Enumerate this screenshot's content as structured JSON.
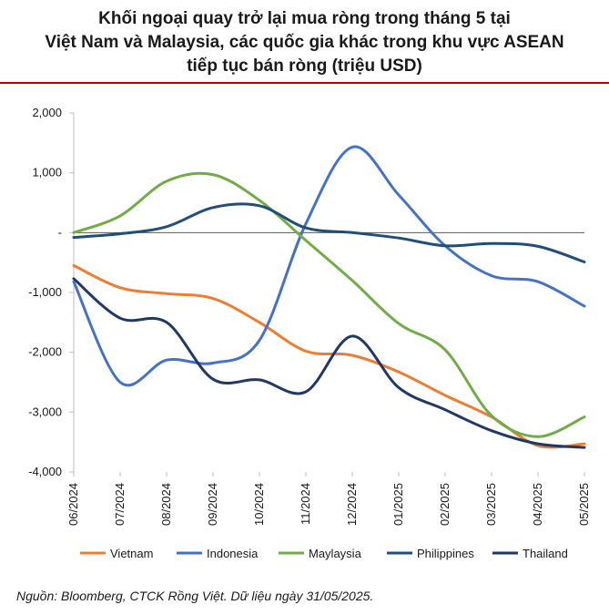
{
  "header": {
    "title_lines": [
      "Khối ngoại quay trở lại mua ròng trong tháng 5 tại",
      "Việt Nam và Malaysia, các quốc gia khác trong khu vực ASEAN",
      "tiếp tục bán ròng (triệu USD)"
    ]
  },
  "footer": {
    "source": "Nguồn: Bloomberg, CTCK Rồng Việt. Dữ liệu ngày 31/05/2025."
  },
  "chart_data": {
    "type": "line",
    "title": "Khối ngoại quay trở lại mua ròng trong tháng 5 tại Việt Nam và Malaysia, các quốc gia khác trong khu vực ASEAN tiếp tục bán ròng (triệu USD)",
    "categories": [
      "06/2024",
      "07/2024",
      "08/2024",
      "09/2024",
      "10/2024",
      "11/2024",
      "12/2024",
      "01/2025",
      "02/2025",
      "03/2025",
      "04/2025",
      "05/2025"
    ],
    "y_tick_labels": [
      "2,000",
      "1,000",
      "-",
      "-1,000",
      "-2,000",
      "-3,000",
      "-4,000"
    ],
    "ylim": [
      -4000,
      2000
    ],
    "y_ticks": [
      2000,
      1000,
      0,
      -1000,
      -2000,
      -3000,
      -4000
    ],
    "grid": false,
    "legend_position": "bottom",
    "series": [
      {
        "name": "Vietnam",
        "color": "#ed7d31",
        "values": [
          -550,
          -920,
          -1020,
          -1100,
          -1500,
          -1980,
          -2050,
          -2330,
          -2720,
          -3080,
          -3560,
          -3530
        ]
      },
      {
        "name": "Indonesia",
        "color": "#4472c4",
        "values": [
          -820,
          -2500,
          -2130,
          -2180,
          -1800,
          150,
          1430,
          630,
          -220,
          -720,
          -820,
          -1230
        ]
      },
      {
        "name": "Maylaysia",
        "color": "#70ad47",
        "values": [
          0,
          280,
          860,
          970,
          540,
          -130,
          -800,
          -1520,
          -1960,
          -3060,
          -3410,
          -3080
        ]
      },
      {
        "name": "Philippines",
        "color": "#1f4e79",
        "values": [
          -80,
          -20,
          100,
          420,
          450,
          80,
          0,
          -90,
          -220,
          -180,
          -230,
          -490
        ]
      },
      {
        "name": "Thailand",
        "color": "#203864",
        "values": [
          -770,
          -1430,
          -1500,
          -2450,
          -2460,
          -2660,
          -1730,
          -2590,
          -2960,
          -3310,
          -3530,
          -3590
        ]
      }
    ]
  }
}
